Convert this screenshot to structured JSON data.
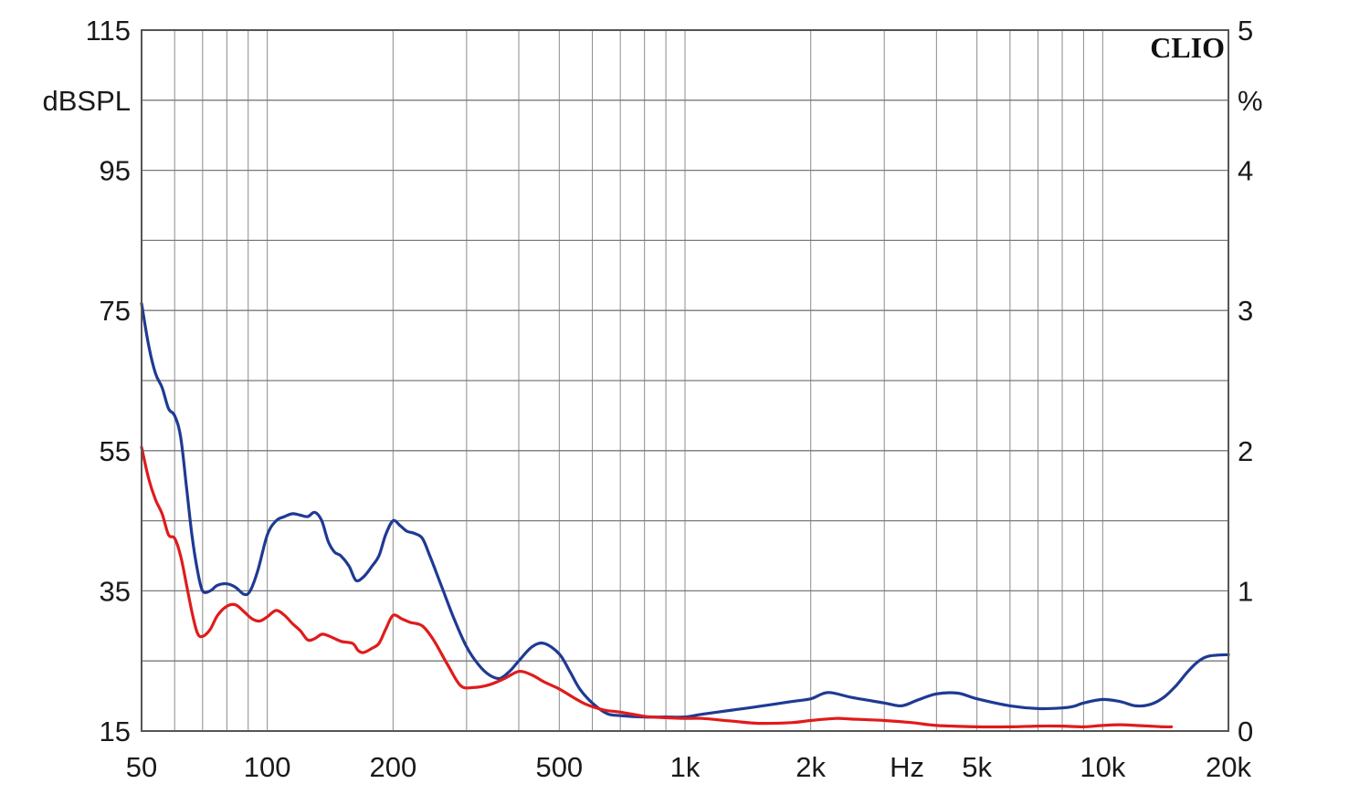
{
  "chart_data": {
    "type": "line",
    "title": "",
    "brand": "CLIO",
    "x_scale": "log",
    "xlim": [
      50,
      20000
    ],
    "x_ticks": [
      {
        "value": 50,
        "label": "50"
      },
      {
        "value": 100,
        "label": "100"
      },
      {
        "value": 200,
        "label": "200"
      },
      {
        "value": 500,
        "label": "500"
      },
      {
        "value": 1000,
        "label": "1k"
      },
      {
        "value": 2000,
        "label": "2k"
      },
      {
        "value": 5000,
        "label": "5k"
      },
      {
        "value": 10000,
        "label": "10k"
      },
      {
        "value": 20000,
        "label": "20k"
      }
    ],
    "x_unit_label": "Hz",
    "y_left": {
      "unit": "dBSPL",
      "ylim": [
        15,
        115
      ],
      "ticks": [
        {
          "value": 115,
          "label": "115"
        },
        {
          "value": 95,
          "label": "95"
        },
        {
          "value": 75,
          "label": "75"
        },
        {
          "value": 55,
          "label": "55"
        },
        {
          "value": 35,
          "label": "35"
        },
        {
          "value": 15,
          "label": "15"
        }
      ]
    },
    "y_right": {
      "unit": "%",
      "ylim": [
        0,
        5
      ],
      "ticks": [
        {
          "value": 5,
          "label": "5"
        },
        {
          "value": 4,
          "label": "4"
        },
        {
          "value": 3,
          "label": "3"
        },
        {
          "value": 2,
          "label": "2"
        },
        {
          "value": 1,
          "label": "1"
        },
        {
          "value": 0,
          "label": "0"
        }
      ]
    },
    "grid": true,
    "series": [
      {
        "color": "#1f3a93",
        "axis": "left",
        "points": [
          [
            50,
            76
          ],
          [
            52,
            70
          ],
          [
            54,
            66
          ],
          [
            56,
            64
          ],
          [
            58,
            61
          ],
          [
            60,
            60
          ],
          [
            62,
            57
          ],
          [
            64,
            50
          ],
          [
            66,
            43
          ],
          [
            68,
            38
          ],
          [
            70,
            35
          ],
          [
            73,
            35
          ],
          [
            76,
            35.8
          ],
          [
            80,
            36
          ],
          [
            84,
            35.5
          ],
          [
            88,
            34.5
          ],
          [
            91,
            35
          ],
          [
            95,
            38
          ],
          [
            100,
            43
          ],
          [
            105,
            45
          ],
          [
            110,
            45.6
          ],
          [
            115,
            46
          ],
          [
            120,
            45.8
          ],
          [
            125,
            45.6
          ],
          [
            130,
            46.2
          ],
          [
            135,
            45
          ],
          [
            140,
            42
          ],
          [
            145,
            40.5
          ],
          [
            150,
            40
          ],
          [
            157,
            38.5
          ],
          [
            163,
            36.5
          ],
          [
            170,
            37
          ],
          [
            178,
            38.5
          ],
          [
            185,
            40
          ],
          [
            192,
            43
          ],
          [
            200,
            45
          ],
          [
            208,
            44.3
          ],
          [
            216,
            43.5
          ],
          [
            225,
            43.2
          ],
          [
            235,
            42.5
          ],
          [
            245,
            40
          ],
          [
            260,
            36
          ],
          [
            280,
            31
          ],
          [
            300,
            27
          ],
          [
            320,
            24.5
          ],
          [
            340,
            23
          ],
          [
            360,
            22.5
          ],
          [
            380,
            23.5
          ],
          [
            400,
            25
          ],
          [
            430,
            27
          ],
          [
            460,
            27.5
          ],
          [
            500,
            26
          ],
          [
            530,
            23.5
          ],
          [
            560,
            21
          ],
          [
            600,
            19
          ],
          [
            650,
            17.5
          ],
          [
            700,
            17.2
          ],
          [
            800,
            17
          ],
          [
            900,
            17
          ],
          [
            1000,
            17
          ],
          [
            1100,
            17.4
          ],
          [
            1300,
            18
          ],
          [
            1500,
            18.5
          ],
          [
            1800,
            19.2
          ],
          [
            2000,
            19.6
          ],
          [
            2200,
            20.5
          ],
          [
            2500,
            19.8
          ],
          [
            3000,
            19
          ],
          [
            3300,
            18.6
          ],
          [
            3600,
            19.4
          ],
          [
            4000,
            20.3
          ],
          [
            4500,
            20.4
          ],
          [
            5000,
            19.6
          ],
          [
            6000,
            18.6
          ],
          [
            7000,
            18.2
          ],
          [
            8000,
            18.3
          ],
          [
            8500,
            18.5
          ],
          [
            9000,
            19
          ],
          [
            10000,
            19.5
          ],
          [
            11000,
            19.2
          ],
          [
            12000,
            18.6
          ],
          [
            13000,
            18.8
          ],
          [
            14000,
            19.8
          ],
          [
            15000,
            21.5
          ],
          [
            16000,
            23.5
          ],
          [
            17000,
            25
          ],
          [
            18000,
            25.7
          ],
          [
            20000,
            25.9
          ]
        ]
      },
      {
        "color": "#e01b1b",
        "axis": "left",
        "points": [
          [
            50,
            55.5
          ],
          [
            52,
            51
          ],
          [
            54,
            48
          ],
          [
            56,
            46
          ],
          [
            58,
            43
          ],
          [
            60,
            42.5
          ],
          [
            62,
            40
          ],
          [
            64,
            36
          ],
          [
            66,
            32
          ],
          [
            68,
            29
          ],
          [
            70,
            28.5
          ],
          [
            73,
            29.5
          ],
          [
            76,
            31.5
          ],
          [
            80,
            32.8
          ],
          [
            84,
            33
          ],
          [
            88,
            32
          ],
          [
            92,
            31
          ],
          [
            96,
            30.7
          ],
          [
            100,
            31.3
          ],
          [
            105,
            32.2
          ],
          [
            110,
            31.5
          ],
          [
            115,
            30.3
          ],
          [
            120,
            29.3
          ],
          [
            125,
            28
          ],
          [
            130,
            28.2
          ],
          [
            135,
            28.8
          ],
          [
            140,
            28.6
          ],
          [
            150,
            27.8
          ],
          [
            160,
            27.5
          ],
          [
            165,
            26.5
          ],
          [
            170,
            26.2
          ],
          [
            178,
            26.8
          ],
          [
            185,
            27.5
          ],
          [
            192,
            29.5
          ],
          [
            200,
            31.5
          ],
          [
            210,
            31
          ],
          [
            220,
            30.5
          ],
          [
            235,
            30
          ],
          [
            250,
            28
          ],
          [
            270,
            24.5
          ],
          [
            290,
            21.5
          ],
          [
            310,
            21.2
          ],
          [
            340,
            21.6
          ],
          [
            370,
            22.5
          ],
          [
            400,
            23.5
          ],
          [
            430,
            23
          ],
          [
            460,
            22
          ],
          [
            500,
            21
          ],
          [
            540,
            19.8
          ],
          [
            580,
            18.8
          ],
          [
            640,
            18
          ],
          [
            700,
            17.7
          ],
          [
            800,
            17.1
          ],
          [
            900,
            16.9
          ],
          [
            1000,
            16.8
          ],
          [
            1100,
            16.8
          ],
          [
            1300,
            16.4
          ],
          [
            1500,
            16.1
          ],
          [
            1800,
            16.2
          ],
          [
            2000,
            16.5
          ],
          [
            2300,
            16.8
          ],
          [
            2500,
            16.7
          ],
          [
            3000,
            16.5
          ],
          [
            3500,
            16.2
          ],
          [
            4000,
            15.8
          ],
          [
            5000,
            15.6
          ],
          [
            6000,
            15.6
          ],
          [
            7000,
            15.7
          ],
          [
            8000,
            15.7
          ],
          [
            9000,
            15.6
          ],
          [
            10000,
            15.8
          ],
          [
            11000,
            15.9
          ],
          [
            12000,
            15.8
          ],
          [
            13000,
            15.7
          ],
          [
            14000,
            15.6
          ],
          [
            14600,
            15.6
          ]
        ]
      }
    ]
  }
}
